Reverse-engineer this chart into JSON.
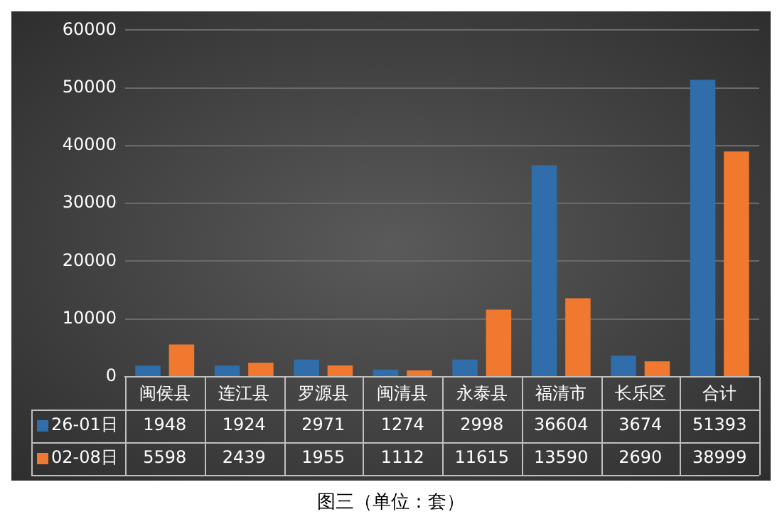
{
  "chart_data": {
    "type": "bar",
    "title": "图三（单位：套）",
    "categories": [
      "闽侯县",
      "连江县",
      "罗源县",
      "闽清县",
      "永泰县",
      "福清市",
      "长乐区",
      "合计"
    ],
    "series": [
      {
        "name": "26-01日",
        "color": "#2f6eaa",
        "values": [
          1948,
          1924,
          2971,
          1274,
          2998,
          36604,
          3674,
          51393
        ]
      },
      {
        "name": "02-08日",
        "color": "#f0782f",
        "values": [
          5598,
          2439,
          1955,
          1112,
          11615,
          13590,
          2690,
          38999
        ]
      }
    ],
    "ylim": [
      0,
      60000
    ],
    "yticks": [
      0,
      10000,
      20000,
      30000,
      40000,
      50000,
      60000
    ],
    "grid": "y",
    "legend": "bottom",
    "data_labels": true
  }
}
